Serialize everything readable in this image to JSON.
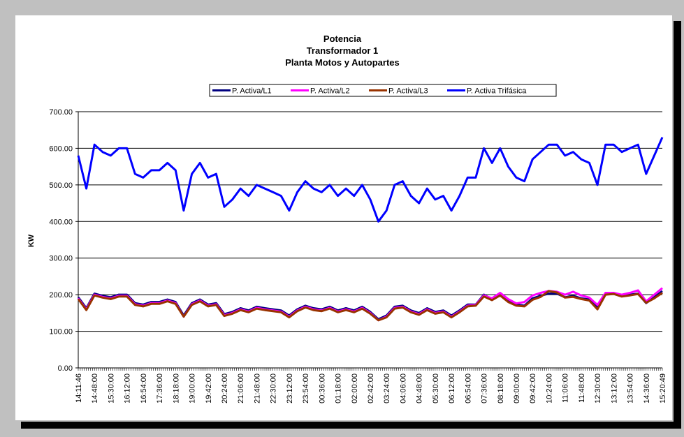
{
  "chart_data": {
    "type": "line",
    "title": [
      "Potencia",
      "Transformador 1",
      "Planta Motos y Autopartes"
    ],
    "y_label": "KW",
    "legend": "top",
    "grid": true,
    "ylim": [
      0,
      700
    ],
    "yticks": [
      {
        "value": 0,
        "label": "0.00"
      },
      {
        "value": 100,
        "label": "100.00"
      },
      {
        "value": 200,
        "label": "200.00"
      },
      {
        "value": 300,
        "label": "300.00"
      },
      {
        "value": 400,
        "label": "400.00"
      },
      {
        "value": 500,
        "label": "500.00"
      },
      {
        "value": 600,
        "label": "600.00"
      },
      {
        "value": 700,
        "label": "700.00"
      }
    ],
    "categories": [
      "14:11:46",
      null,
      "14:48:00",
      null,
      "15:30:00",
      null,
      "16:12:00",
      null,
      "16:54:00",
      null,
      "17:36:00",
      null,
      "18:18:00",
      null,
      "19:00:00",
      null,
      "19:42:00",
      null,
      "20:24:00",
      null,
      "21:06:00",
      null,
      "21:48:00",
      null,
      "22:30:00",
      null,
      "23:12:00",
      null,
      "23:54:00",
      null,
      "00:36:00",
      null,
      "01:18:00",
      null,
      "02:00:00",
      null,
      "02:42:00",
      null,
      "03:24:00",
      null,
      "04:06:00",
      null,
      "04:48:00",
      null,
      "05:30:00",
      null,
      "06:12:00",
      null,
      "06:54:00",
      null,
      "07:36:00",
      null,
      "08:18:00",
      null,
      "09:00:00",
      null,
      "09:42:00",
      null,
      "10:24:00",
      null,
      "11:06:00",
      null,
      "11:48:00",
      null,
      "12:30:00",
      null,
      "13:12:00",
      null,
      "13:54:00",
      null,
      "14:36:00",
      null,
      "15:20:49"
    ],
    "series": [
      {
        "name": "P. Activa/L1",
        "color": "#000080",
        "values": [
          193,
          163,
          203,
          197,
          193,
          200,
          200,
          177,
          173,
          180,
          180,
          187,
          180,
          143,
          177,
          187,
          173,
          177,
          147,
          153,
          163,
          157,
          167,
          163,
          160,
          157,
          143,
          160,
          170,
          163,
          160,
          167,
          157,
          163,
          157,
          167,
          153,
          133,
          143,
          167,
          170,
          157,
          150,
          163,
          153,
          157,
          143,
          157,
          173,
          173,
          200,
          187,
          200,
          183,
          173,
          170,
          190,
          197,
          203,
          203,
          193,
          197,
          190,
          187,
          167,
          203,
          203,
          197,
          200,
          203,
          177,
          193,
          210
        ]
      },
      {
        "name": "P. Activa/L2",
        "color": "#ff00ff",
        "values": [
          190,
          160,
          200,
          194,
          190,
          197,
          197,
          174,
          170,
          177,
          177,
          184,
          177,
          140,
          174,
          184,
          170,
          174,
          144,
          150,
          160,
          154,
          164,
          160,
          157,
          154,
          140,
          157,
          167,
          160,
          157,
          164,
          154,
          160,
          154,
          164,
          150,
          130,
          140,
          164,
          167,
          154,
          147,
          160,
          150,
          154,
          140,
          154,
          170,
          172,
          198,
          190,
          205,
          188,
          176,
          180,
          198,
          205,
          210,
          208,
          200,
          208,
          198,
          192,
          172,
          205,
          205,
          200,
          205,
          212,
          182,
          200,
          218
        ]
      },
      {
        "name": "P. Activa/L3",
        "color": "#993300",
        "values": [
          188,
          158,
          198,
          192,
          188,
          195,
          195,
          172,
          168,
          175,
          175,
          182,
          175,
          140,
          172,
          182,
          168,
          172,
          142,
          148,
          158,
          152,
          162,
          158,
          155,
          152,
          138,
          155,
          165,
          158,
          155,
          162,
          152,
          158,
          152,
          162,
          148,
          130,
          138,
          162,
          165,
          152,
          145,
          158,
          148,
          152,
          138,
          152,
          168,
          170,
          195,
          185,
          198,
          180,
          170,
          168,
          186,
          194,
          210,
          206,
          192,
          194,
          188,
          184,
          160,
          200,
          202,
          195,
          198,
          202,
          178,
          190,
          205
        ]
      },
      {
        "name": "P. Activa  Trifásica",
        "color": "#0000ff",
        "values": [
          580,
          490,
          610,
          590,
          580,
          600,
          600,
          530,
          520,
          540,
          540,
          560,
          540,
          430,
          530,
          560,
          520,
          530,
          440,
          460,
          490,
          470,
          500,
          490,
          480,
          470,
          430,
          480,
          510,
          490,
          480,
          500,
          470,
          490,
          470,
          500,
          460,
          400,
          430,
          500,
          510,
          470,
          450,
          490,
          460,
          470,
          430,
          470,
          520,
          520,
          600,
          560,
          600,
          550,
          520,
          510,
          570,
          590,
          610,
          610,
          580,
          590,
          570,
          560,
          500,
          610,
          610,
          590,
          600,
          610,
          530,
          580,
          630
        ]
      }
    ]
  }
}
